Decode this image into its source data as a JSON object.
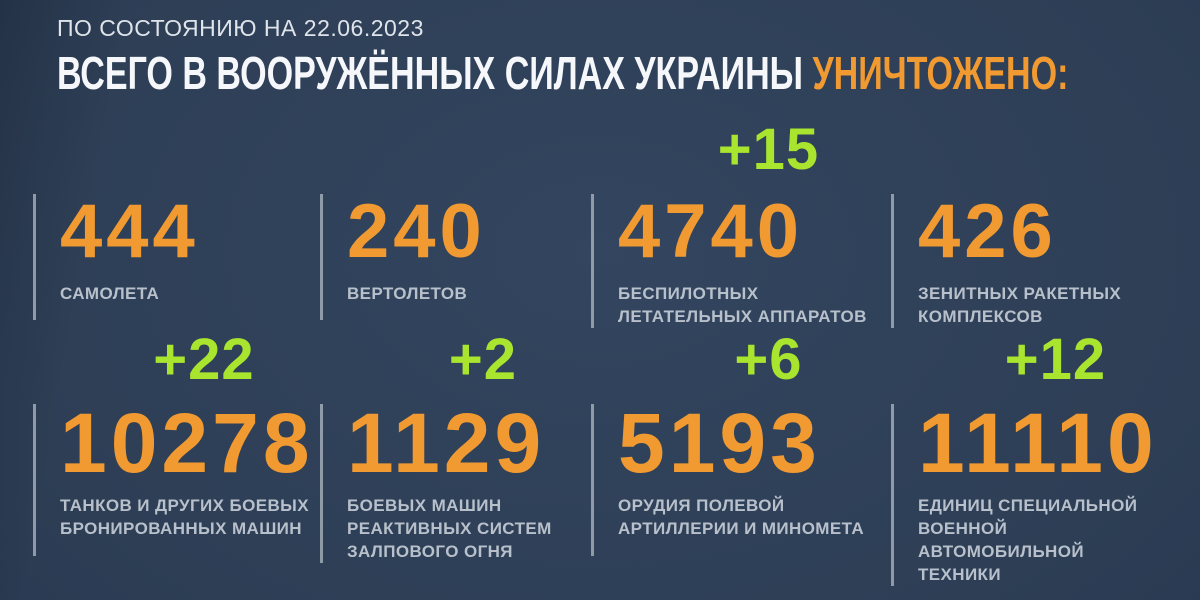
{
  "header": {
    "date_line": "ПО СОСТОЯНИЮ НА 22.06.2023",
    "title_main": "ВСЕГО В ВООРУЖЁННЫХ СИЛАХ УКРАИНЫ",
    "title_accent": "УНИЧТОЖЕНО:"
  },
  "colors": {
    "background": "#2D3E55",
    "accent_orange": "#F09A31",
    "accent_green": "#A9E42F",
    "text_white": "#F5F7FA",
    "text_grey": "#B8C0CB",
    "divider": "#A8B1BC"
  },
  "stats": {
    "rows": [
      {
        "cells": [
          {
            "delta": "",
            "value": "444",
            "caption": "САМОЛЕТА"
          },
          {
            "delta": "",
            "value": "240",
            "caption": "ВЕРТОЛЕТОВ"
          },
          {
            "delta": "+15",
            "value": "4740",
            "caption": "БЕСПИЛОТНЫХ\nЛЕТАТЕЛЬНЫХ АППАРАТОВ"
          },
          {
            "delta": "",
            "value": "426",
            "caption": "ЗЕНИТНЫХ РАКЕТНЫХ\nКОМПЛЕКСОВ"
          }
        ]
      },
      {
        "cells": [
          {
            "delta": "+22",
            "value": "10278",
            "caption": "ТАНКОВ И ДРУГИХ БОЕВЫХ\nБРОНИРОВАННЫХ МАШИН"
          },
          {
            "delta": "+2",
            "value": "1129",
            "caption": "БОЕВЫХ МАШИН\nРЕАКТИВНЫХ СИСТЕМ\nЗАЛПОВОГО ОГНЯ"
          },
          {
            "delta": "+6",
            "value": "5193",
            "caption": "ОРУДИЯ ПОЛЕВОЙ\nАРТИЛЛЕРИИ И МИНОМЕТА"
          },
          {
            "delta": "+12",
            "value": "11110",
            "caption": "ЕДИНИЦ СПЕЦИАЛЬНОЙ\nВОЕННОЙ АВТОМОБИЛЬНОЙ\nТЕХНИКИ"
          }
        ]
      }
    ]
  },
  "chart_data": {
    "type": "table",
    "title": "ВСЕГО В ВООРУЖЁННЫХ СИЛАХ УКРАИНЫ УНИЧТОЖЕНО:",
    "subtitle": "ПО СОСТОЯНИЮ НА 22.06.2023",
    "categories": [
      "САМОЛЕТА",
      "ВЕРТОЛЕТОВ",
      "БЕСПИЛОТНЫХ ЛЕТАТЕЛЬНЫХ АППАРАТОВ",
      "ЗЕНИТНЫХ РАКЕТНЫХ КОМПЛЕКСОВ",
      "ТАНКОВ И ДРУГИХ БОЕВЫХ БРОНИРОВАННЫХ МАШИН",
      "БОЕВЫХ МАШИН РЕАКТИВНЫХ СИСТЕМ ЗАЛПОВОГО ОГНЯ",
      "ОРУДИЯ ПОЛЕВОЙ АРТИЛЛЕРИИ И МИНОМЕТА",
      "ЕДИНИЦ СПЕЦИАЛЬНОЙ ВОЕННОЙ АВТОМОБИЛЬНОЙ ТЕХНИКИ"
    ],
    "values": [
      444,
      240,
      4740,
      426,
      10278,
      1129,
      5193,
      11110
    ],
    "deltas": [
      null,
      null,
      15,
      null,
      22,
      2,
      6,
      12
    ],
    "layout": "2 rows x 4 columns of stat tiles, delta badges above numbers"
  }
}
